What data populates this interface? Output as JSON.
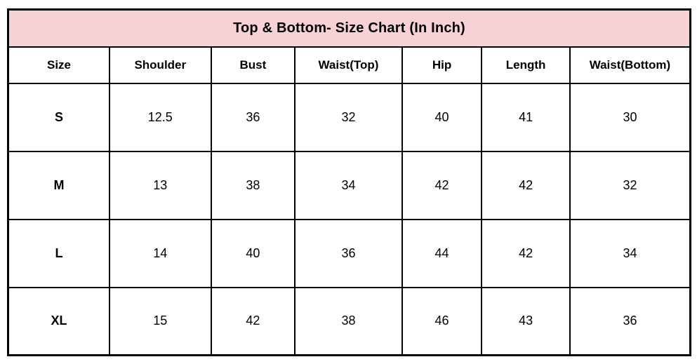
{
  "title": "Top & Bottom- Size Chart (In Inch)",
  "colors": {
    "title_bar_background": "#f6d1d5",
    "border": "#000000",
    "text": "#000000",
    "cell_background": "#ffffff"
  },
  "chart_data": {
    "type": "table",
    "title": "Top & Bottom- Size Chart (In Inch)",
    "unit": "Inch",
    "columns": [
      "Size",
      "Shoulder",
      "Bust",
      "Waist(Top)",
      "Hip",
      "Length",
      "Waist(Bottom)"
    ],
    "rows": [
      [
        "S",
        "12.5",
        "36",
        "32",
        "40",
        "41",
        "30"
      ],
      [
        "M",
        "13",
        "38",
        "34",
        "42",
        "42",
        "32"
      ],
      [
        "L",
        "14",
        "40",
        "36",
        "44",
        "42",
        "34"
      ],
      [
        "XL",
        "15",
        "42",
        "38",
        "46",
        "43",
        "36"
      ]
    ]
  }
}
